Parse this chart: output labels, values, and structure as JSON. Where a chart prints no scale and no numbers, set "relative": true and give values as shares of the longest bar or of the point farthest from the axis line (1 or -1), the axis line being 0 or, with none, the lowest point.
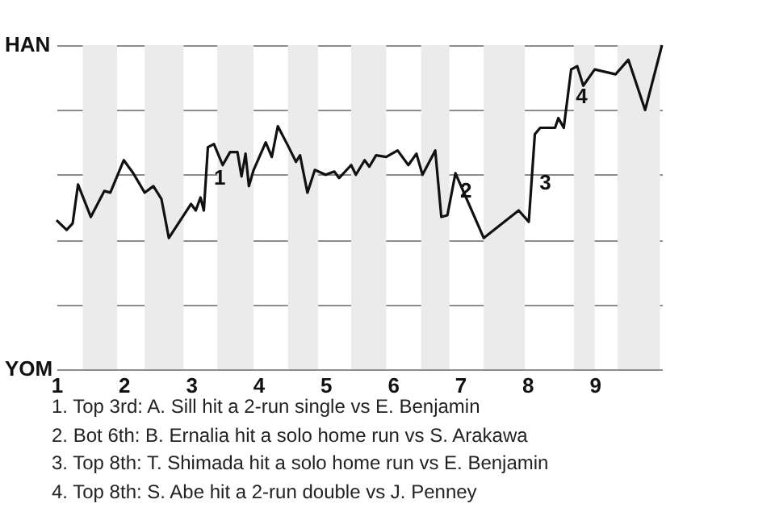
{
  "chart_data": {
    "type": "line",
    "relative": true,
    "x": [
      1,
      1.15,
      1.24,
      1.32,
      1.51,
      1.71,
      1.8,
      2,
      2.14,
      2.31,
      2.44,
      2.56,
      2.67,
      3,
      3.07,
      3.14,
      3.19,
      3.25,
      3.34,
      3.47,
      3.58,
      3.69,
      3.75,
      3.81,
      3.86,
      3.93,
      4.11,
      4.2,
      4.29,
      4.44,
      4.56,
      4.62,
      4.73,
      4.84,
      5,
      5.13,
      5.2,
      5.38,
      5.45,
      5.58,
      5.65,
      5.75,
      5.9,
      6.07,
      6.23,
      6.35,
      6.44,
      6.63,
      6.72,
      6.81,
      6.93,
      7.35,
      7.87,
      8.02,
      8.11,
      8.19,
      8.41,
      8.46,
      8.54,
      8.65,
      8.74,
      8.83,
      9,
      9.31,
      9.5,
      9.75,
      10
    ],
    "series": [
      {
        "color": "#111111",
        "values": [
          0.46,
          0.43,
          0.45,
          0.57,
          0.47,
          0.55,
          0.545,
          0.645,
          0.605,
          0.545,
          0.565,
          0.525,
          0.405,
          0.51,
          0.49,
          0.53,
          0.49,
          0.685,
          0.695,
          0.63,
          0.67,
          0.67,
          0.595,
          0.665,
          0.565,
          0.615,
          0.7,
          0.655,
          0.75,
          0.69,
          0.64,
          0.66,
          0.545,
          0.615,
          0.6,
          0.61,
          0.59,
          0.63,
          0.6,
          0.645,
          0.625,
          0.66,
          0.655,
          0.675,
          0.63,
          0.665,
          0.6,
          0.675,
          0.47,
          0.475,
          0.605,
          0.405,
          0.49,
          0.455,
          0.725,
          0.745,
          0.745,
          0.775,
          0.745,
          0.925,
          0.935,
          0.875,
          0.925,
          0.91,
          0.955,
          0.8,
          1.0
        ]
      }
    ],
    "xlim": [
      1,
      10
    ],
    "xticks": [
      1,
      2,
      3,
      4,
      5,
      6,
      7,
      8,
      9
    ],
    "grid": "y",
    "bands": [
      {
        "axis": "x",
        "from": 1.39,
        "to": 1.9,
        "color": "#ebebeb"
      },
      {
        "axis": "x",
        "from": 2.31,
        "to": 2.89,
        "color": "#ebebeb"
      },
      {
        "axis": "x",
        "from": 3.39,
        "to": 3.93,
        "color": "#ebebeb"
      },
      {
        "axis": "x",
        "from": 4.44,
        "to": 4.89,
        "color": "#ebebeb"
      },
      {
        "axis": "x",
        "from": 5.38,
        "to": 5.9,
        "color": "#ebebeb"
      },
      {
        "axis": "x",
        "from": 6.42,
        "to": 6.84,
        "color": "#ebebeb"
      },
      {
        "axis": "x",
        "from": 7.35,
        "to": 7.96,
        "color": "#ebebeb"
      },
      {
        "axis": "x",
        "from": 8.69,
        "to": 9.0,
        "color": "#ebebeb"
      },
      {
        "axis": "x",
        "from": 9.34,
        "to": 9.97,
        "color": "#ebebeb"
      }
    ],
    "annotations": [
      "HAN",
      "YOM",
      {
        "text": "1",
        "x": 3.22,
        "y": 0.59
      },
      {
        "text": "2",
        "x": 6.88,
        "y": 0.55
      },
      {
        "text": "3",
        "x": 8.06,
        "y": 0.575
      },
      {
        "text": "4",
        "x": 8.6,
        "y": 0.84
      },
      "1. Top 3rd: A. Sill hit a 2-run single vs E. Benjamin",
      "2. Bot 6th: B. Ernalia hit a solo home run vs S. Arakawa",
      "3. Top 8th: T. Shimada hit a solo home run vs E. Benjamin",
      "4. Top 8th: S. Abe hit a 2-run double vs J. Penney"
    ]
  }
}
